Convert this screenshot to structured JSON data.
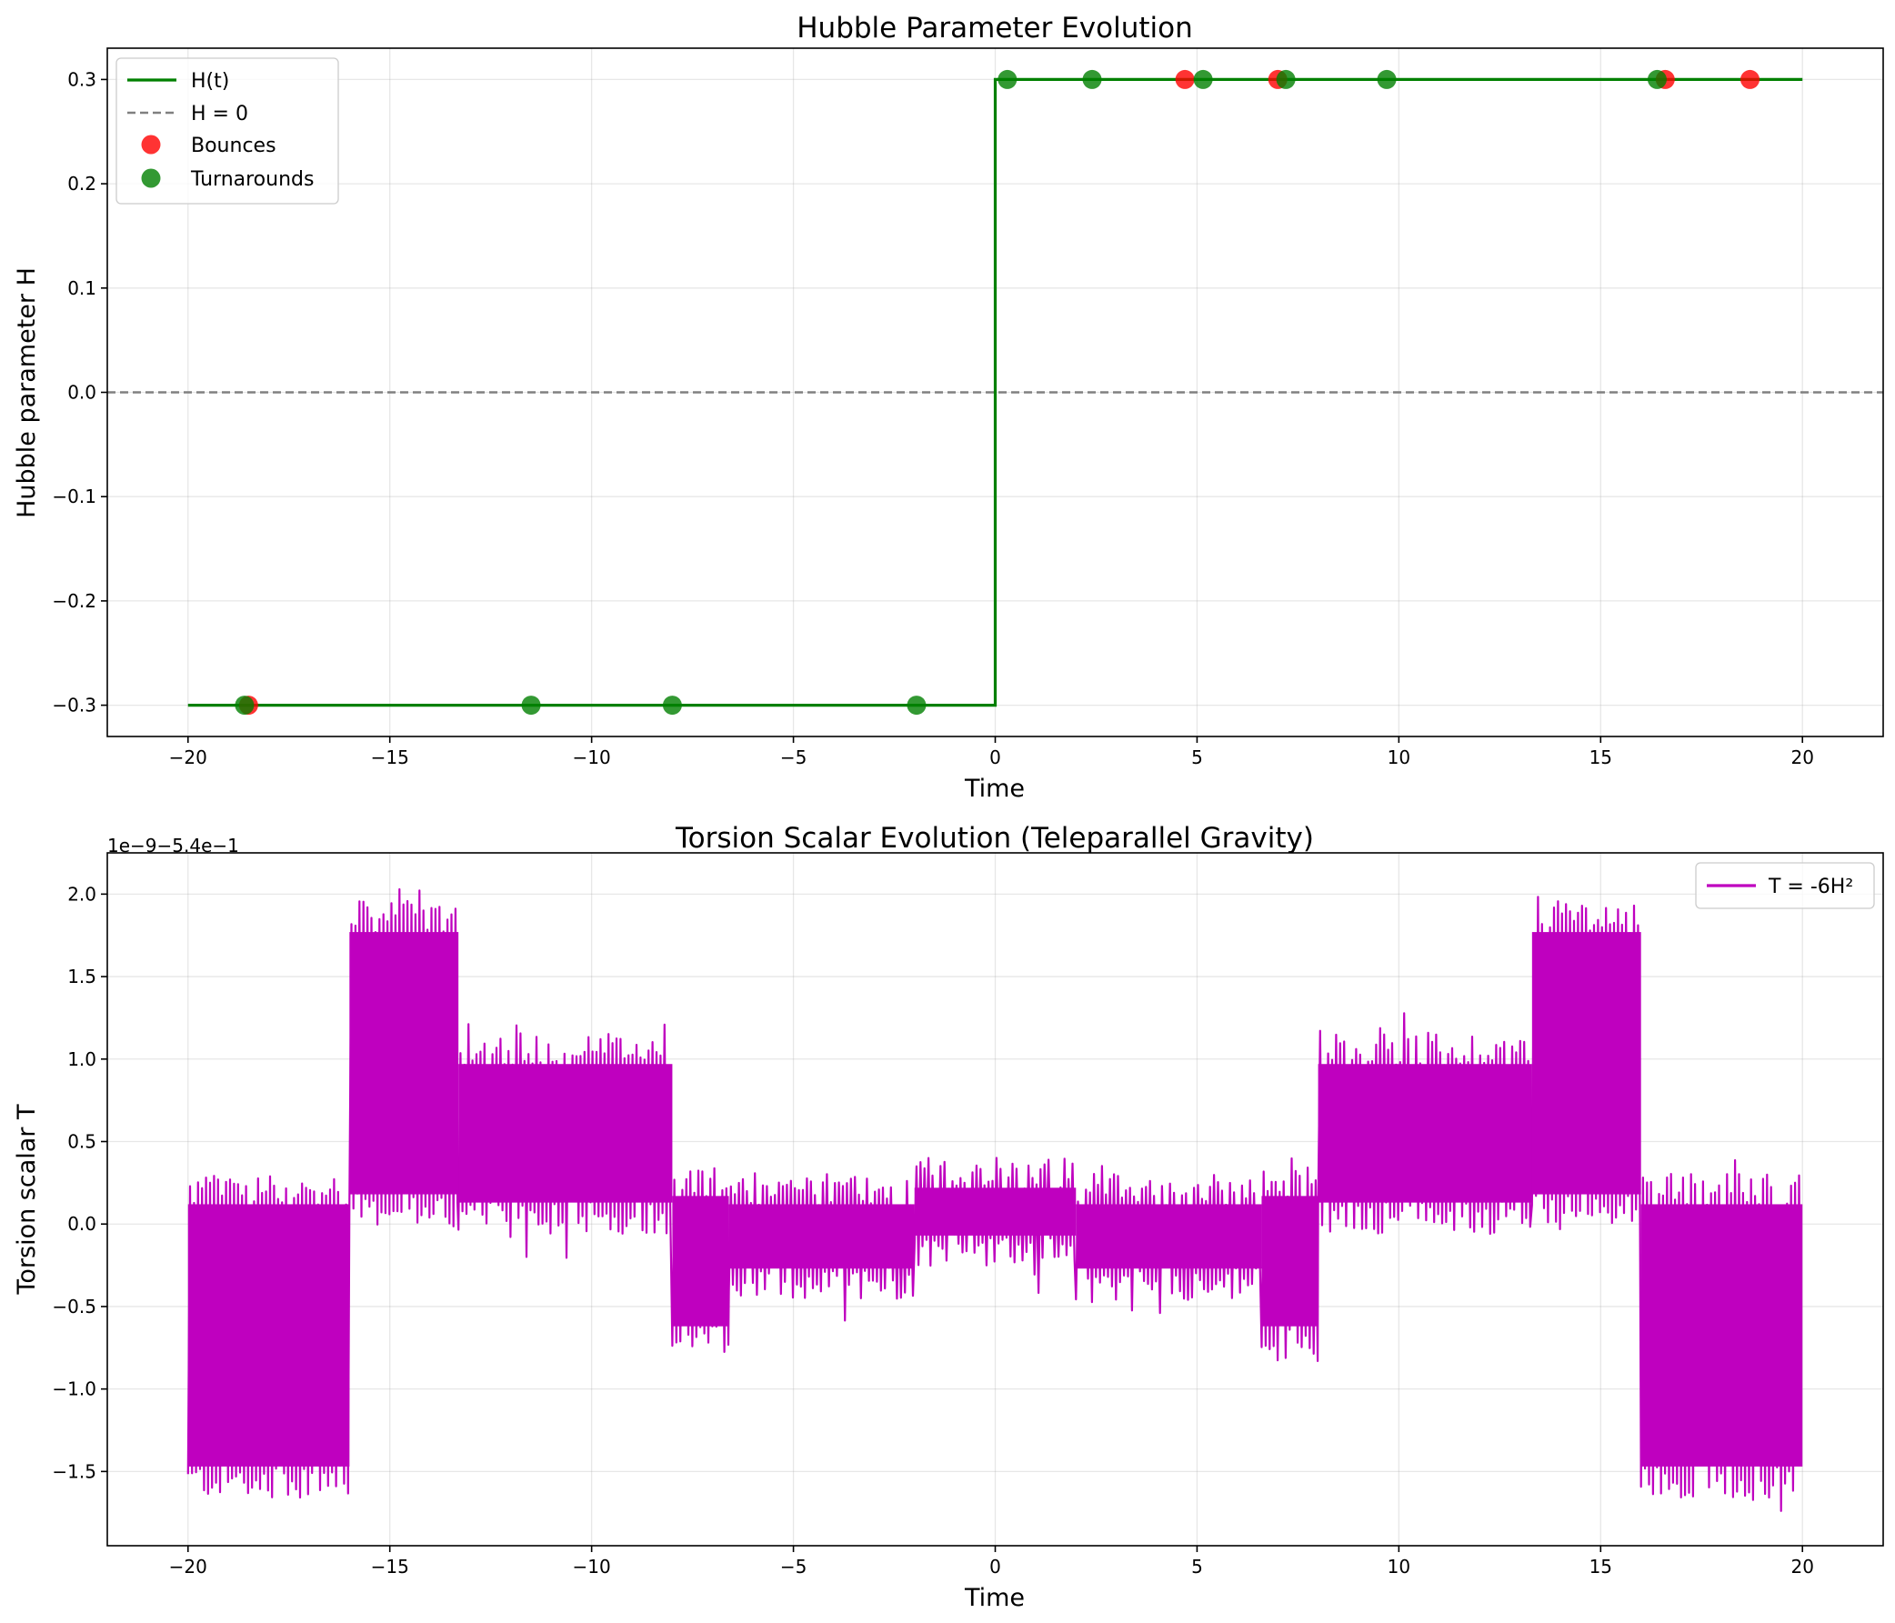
{
  "chart_data": [
    {
      "type": "line",
      "title": "Hubble Parameter Evolution",
      "xlabel": "Time",
      "ylabel": "Hubble parameter H",
      "xlim": [
        -22,
        22
      ],
      "ylim": [
        -0.33,
        0.33
      ],
      "xticks": [
        -20,
        -15,
        -10,
        -5,
        0,
        5,
        10,
        15,
        20
      ],
      "xtick_labels": [
        "−20",
        "−15",
        "−10",
        "−5",
        "0",
        "5",
        "10",
        "15",
        "20"
      ],
      "yticks": [
        -0.3,
        -0.2,
        -0.1,
        0.0,
        0.1,
        0.2,
        0.3
      ],
      "ytick_labels": [
        "−0.3",
        "−0.2",
        "−0.1",
        "0.0",
        "0.1",
        "0.2",
        "0.3"
      ],
      "grid": true,
      "legend_position": "upper-left",
      "series": [
        {
          "name": "H(t)",
          "kind": "line",
          "color": "#008000",
          "x": [
            -20,
            0,
            0,
            20
          ],
          "y": [
            -0.3,
            -0.3,
            0.3,
            0.3
          ]
        },
        {
          "name": "H = 0",
          "kind": "dashed-line",
          "color": "#808080",
          "y": 0.0
        },
        {
          "name": "Bounces",
          "kind": "scatter",
          "color": "#ff0000",
          "x": [
            -18.5,
            4.7,
            7.0,
            16.6,
            18.7
          ],
          "y": [
            -0.3,
            0.3,
            0.3,
            0.3,
            0.3
          ]
        },
        {
          "name": "Turnarounds",
          "kind": "scatter",
          "color": "#008000",
          "x": [
            -18.6,
            -11.5,
            -8.0,
            -1.95,
            0.3,
            2.4,
            5.15,
            7.2,
            9.7,
            16.4
          ],
          "y": [
            -0.3,
            -0.3,
            -0.3,
            -0.3,
            0.3,
            0.3,
            0.3,
            0.3,
            0.3,
            0.3
          ]
        }
      ]
    },
    {
      "type": "line",
      "title": "Torsion Scalar Evolution (Teleparallel Gravity)",
      "xlabel": "Time",
      "ylabel": "Torsion scalar T",
      "axis_offset_label": "1e−9−5.4e−1",
      "xlim": [
        -22,
        22
      ],
      "ylim": [
        -1.95,
        2.25
      ],
      "xticks": [
        -20,
        -15,
        -10,
        -5,
        0,
        5,
        10,
        15,
        20
      ],
      "xtick_labels": [
        "−20",
        "−15",
        "−10",
        "−5",
        "0",
        "5",
        "10",
        "15",
        "20"
      ],
      "yticks": [
        -1.5,
        -1.0,
        -0.5,
        0.0,
        0.5,
        1.0,
        1.5,
        2.0
      ],
      "ytick_labels": [
        "−1.5",
        "−1.0",
        "−0.5",
        "0.0",
        "0.5",
        "1.0",
        "1.5",
        "2.0"
      ],
      "grid": true,
      "legend_position": "upper-right",
      "series": [
        {
          "name": "T = -6H²",
          "color": "#bf00bf",
          "noisy_band_segments": [
            {
              "x_start": -20,
              "x_end": -16,
              "low": -1.55,
              "high": 0.2
            },
            {
              "x_start": -16,
              "x_end": -13.3,
              "low": 0.1,
              "high": 1.85
            },
            {
              "x_start": -13.3,
              "x_end": -8,
              "low": 0.05,
              "high": 1.05
            },
            {
              "x_start": -8,
              "x_end": -6.6,
              "low": -0.7,
              "high": 0.25
            },
            {
              "x_start": -6.6,
              "x_end": -2,
              "low": -0.35,
              "high": 0.2
            },
            {
              "x_start": -2,
              "x_end": 2,
              "low": -0.15,
              "high": 0.3
            },
            {
              "x_start": 2,
              "x_end": 6.6,
              "low": -0.35,
              "high": 0.2
            },
            {
              "x_start": 6.6,
              "x_end": 8,
              "low": -0.7,
              "high": 0.25
            },
            {
              "x_start": 8,
              "x_end": 13.3,
              "low": 0.05,
              "high": 1.05
            },
            {
              "x_start": 13.3,
              "x_end": 16,
              "low": 0.1,
              "high": 1.85
            },
            {
              "x_start": 16,
              "x_end": 20,
              "low": -1.55,
              "high": 0.2
            }
          ]
        }
      ]
    }
  ]
}
